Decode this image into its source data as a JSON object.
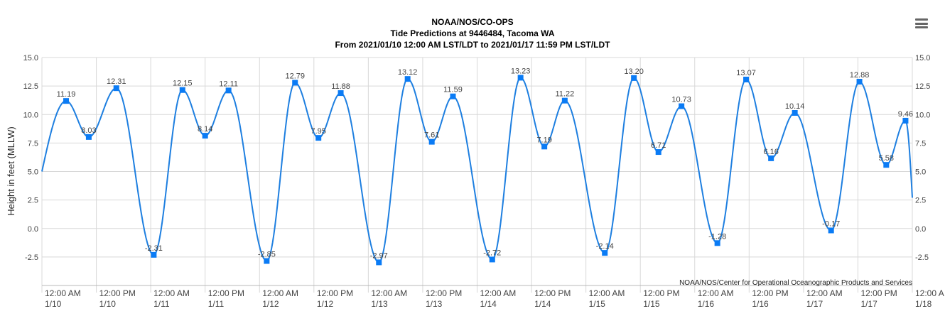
{
  "title": {
    "line1": "NOAA/NOS/CO-OPS",
    "line2": "Tide Predictions at 9446484, Tacoma WA",
    "line3": "From 2021/01/10 12:00 AM LST/LDT to 2021/01/17 11:59 PM LST/LDT"
  },
  "credit": "NOAA/NOS/Center for Operational Oceanographic Products and Services",
  "menu_icon": "hamburger-menu-icon",
  "colors": {
    "line": "#1e7fe0",
    "marker": "#0a7bf5",
    "grid": "#d8d8d8",
    "axis": "#b8b8b8"
  },
  "chart_data": {
    "type": "line",
    "ylabel": "Height in feet (MLLW)",
    "ylim": [
      -5,
      15
    ],
    "yticks": [
      "-2.5",
      "0.0",
      "2.5",
      "5.0",
      "7.5",
      "10.0",
      "12.5",
      "15.0"
    ],
    "xlim": [
      "2021-01-10 00:00",
      "2021-01-18 00:00"
    ],
    "grid": true,
    "xticks": [
      {
        "time": "2021-01-10 00:00",
        "l1": "12:00 AM",
        "l2": "1/10"
      },
      {
        "time": "2021-01-10 12:00",
        "l1": "12:00 PM",
        "l2": "1/10"
      },
      {
        "time": "2021-01-11 00:00",
        "l1": "12:00 AM",
        "l2": "1/11"
      },
      {
        "time": "2021-01-11 12:00",
        "l1": "12:00 PM",
        "l2": "1/11"
      },
      {
        "time": "2021-01-12 00:00",
        "l1": "12:00 AM",
        "l2": "1/12"
      },
      {
        "time": "2021-01-12 12:00",
        "l1": "12:00 PM",
        "l2": "1/12"
      },
      {
        "time": "2021-01-13 00:00",
        "l1": "12:00 AM",
        "l2": "1/13"
      },
      {
        "time": "2021-01-13 12:00",
        "l1": "12:00 PM",
        "l2": "1/13"
      },
      {
        "time": "2021-01-14 00:00",
        "l1": "12:00 AM",
        "l2": "1/14"
      },
      {
        "time": "2021-01-14 12:00",
        "l1": "12:00 PM",
        "l2": "1/14"
      },
      {
        "time": "2021-01-15 00:00",
        "l1": "12:00 AM",
        "l2": "1/15"
      },
      {
        "time": "2021-01-15 12:00",
        "l1": "12:00 PM",
        "l2": "1/15"
      },
      {
        "time": "2021-01-16 00:00",
        "l1": "12:00 AM",
        "l2": "1/16"
      },
      {
        "time": "2021-01-16 12:00",
        "l1": "12:00 PM",
        "l2": "1/16"
      },
      {
        "time": "2021-01-17 00:00",
        "l1": "12:00 AM",
        "l2": "1/17"
      },
      {
        "time": "2021-01-17 12:00",
        "l1": "12:00 PM",
        "l2": "1/17"
      },
      {
        "time": "2021-01-18 00:00",
        "l1": "12:00 A",
        "l2": "1/18"
      }
    ],
    "start_value": 5.0,
    "end_value": 2.7,
    "points": [
      {
        "time": "2021-01-10 05:20",
        "value": 11.19,
        "label": "11.19"
      },
      {
        "time": "2021-01-10 10:20",
        "value": 8.03,
        "label": "8.03"
      },
      {
        "time": "2021-01-10 16:25",
        "value": 12.31,
        "label": "12.31"
      },
      {
        "time": "2021-01-11 00:40",
        "value": -2.31,
        "label": "-2.31"
      },
      {
        "time": "2021-01-11 07:00",
        "value": 12.15,
        "label": "12.15"
      },
      {
        "time": "2021-01-11 12:00",
        "value": 8.14,
        "label": "8.14"
      },
      {
        "time": "2021-01-11 17:10",
        "value": 12.11,
        "label": "12.11"
      },
      {
        "time": "2021-01-12 01:35",
        "value": -2.85,
        "label": "-2.85"
      },
      {
        "time": "2021-01-12 07:50",
        "value": 12.79,
        "label": "12.79"
      },
      {
        "time": "2021-01-12 13:00",
        "value": 7.95,
        "label": "7.95"
      },
      {
        "time": "2021-01-12 17:55",
        "value": 11.88,
        "label": "11.88"
      },
      {
        "time": "2021-01-13 02:20",
        "value": -2.97,
        "label": "-2.97"
      },
      {
        "time": "2021-01-13 08:40",
        "value": 13.12,
        "label": "13.12"
      },
      {
        "time": "2021-01-13 14:00",
        "value": 7.61,
        "label": "7.61"
      },
      {
        "time": "2021-01-13 18:40",
        "value": 11.59,
        "label": "11.59"
      },
      {
        "time": "2021-01-14 03:20",
        "value": -2.72,
        "label": "-2.72"
      },
      {
        "time": "2021-01-14 09:35",
        "value": 13.23,
        "label": "13.23"
      },
      {
        "time": "2021-01-14 14:50",
        "value": 7.19,
        "label": "7.19"
      },
      {
        "time": "2021-01-14 19:20",
        "value": 11.22,
        "label": "11.22"
      },
      {
        "time": "2021-01-15 04:10",
        "value": -2.14,
        "label": "-2.14"
      },
      {
        "time": "2021-01-15 10:35",
        "value": 13.2,
        "label": "13.20"
      },
      {
        "time": "2021-01-15 16:00",
        "value": 6.71,
        "label": "6.71"
      },
      {
        "time": "2021-01-15 21:05",
        "value": 10.73,
        "label": "10.73"
      },
      {
        "time": "2021-01-16 05:00",
        "value": -1.28,
        "label": "-1.28"
      },
      {
        "time": "2021-01-16 11:20",
        "value": 13.07,
        "label": "13.07"
      },
      {
        "time": "2021-01-16 16:50",
        "value": 6.16,
        "label": "6.16"
      },
      {
        "time": "2021-01-16 22:05",
        "value": 10.14,
        "label": "10.14"
      },
      {
        "time": "2021-01-17 06:05",
        "value": -0.17,
        "label": "-0.17"
      },
      {
        "time": "2021-01-17 12:20",
        "value": 12.88,
        "label": "12.88"
      },
      {
        "time": "2021-01-17 18:15",
        "value": 5.58,
        "label": "5.58"
      },
      {
        "time": "2021-01-17 22:30",
        "value": 9.46,
        "label": "9.46"
      }
    ]
  }
}
